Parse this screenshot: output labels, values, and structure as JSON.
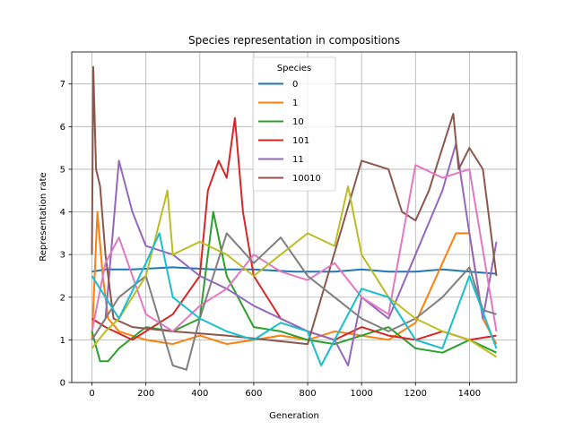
{
  "chart_data": {
    "type": "line",
    "title": "Species representation in compositions",
    "xlabel": "Generation",
    "ylabel": "Representation rate",
    "xlim": [
      -75,
      1575
    ],
    "ylim": [
      0,
      7.75
    ],
    "xticks": [
      0,
      200,
      400,
      600,
      800,
      1000,
      1200,
      1400
    ],
    "yticks": [
      0,
      1,
      2,
      3,
      4,
      5,
      6,
      7
    ],
    "grid": true,
    "legend": {
      "title": "Species",
      "placement": "upper-center"
    },
    "series": [
      {
        "name": "0",
        "color": "#1f77b4",
        "legend": true,
        "x": [
          0,
          50,
          150,
          300,
          450,
          600,
          750,
          900,
          1000,
          1100,
          1200,
          1300,
          1400,
          1500
        ],
        "y": [
          2.6,
          2.65,
          2.65,
          2.7,
          2.65,
          2.65,
          2.6,
          2.6,
          2.65,
          2.6,
          2.6,
          2.65,
          2.6,
          2.55
        ]
      },
      {
        "name": "1",
        "color": "#ff7f0e",
        "legend": true,
        "x": [
          0,
          20,
          40,
          60,
          100,
          200,
          300,
          400,
          500,
          600,
          700,
          800,
          900,
          1000,
          1100,
          1200,
          1300,
          1350,
          1400,
          1450,
          1500
        ],
        "y": [
          1.0,
          4.0,
          2.5,
          1.5,
          1.2,
          1.0,
          0.9,
          1.1,
          0.9,
          1.0,
          1.1,
          1.0,
          1.2,
          1.1,
          1.0,
          1.4,
          2.8,
          3.5,
          3.5,
          1.5,
          0.9
        ]
      },
      {
        "name": "10",
        "color": "#2ca02c",
        "legend": true,
        "x": [
          0,
          30,
          60,
          100,
          200,
          300,
          400,
          450,
          500,
          600,
          700,
          800,
          900,
          1000,
          1100,
          1200,
          1300,
          1400,
          1500
        ],
        "y": [
          1.2,
          0.5,
          0.5,
          0.8,
          1.3,
          1.2,
          1.5,
          4.0,
          2.5,
          1.3,
          1.2,
          1.0,
          0.9,
          1.1,
          1.3,
          0.8,
          0.7,
          1.0,
          0.7
        ]
      },
      {
        "name": "101",
        "color": "#d62728",
        "legend": true,
        "x": [
          0,
          50,
          150,
          300,
          400,
          430,
          470,
          500,
          530,
          560,
          600,
          700,
          800,
          900,
          1000,
          1100,
          1200,
          1300,
          1400,
          1500
        ],
        "y": [
          1.5,
          1.3,
          1.0,
          1.6,
          2.5,
          4.5,
          5.2,
          4.8,
          6.2,
          4.0,
          2.5,
          1.5,
          1.2,
          1.0,
          1.3,
          1.1,
          1.0,
          1.2,
          1.0,
          1.1
        ]
      },
      {
        "name": "11",
        "color": "#9467bd",
        "legend": true,
        "x": [
          0,
          50,
          100,
          150,
          200,
          300,
          400,
          500,
          600,
          700,
          800,
          900,
          950,
          1000,
          1100,
          1200,
          1300,
          1350,
          1400,
          1450,
          1500
        ],
        "y": [
          1.0,
          1.5,
          5.2,
          4.0,
          3.2,
          3.0,
          2.5,
          2.2,
          1.8,
          1.5,
          1.2,
          1.0,
          0.4,
          2.0,
          1.5,
          3.0,
          4.5,
          5.6,
          3.5,
          1.5,
          3.3
        ]
      },
      {
        "name": "10010",
        "color": "#8c564b",
        "legend": true,
        "x": [
          0,
          5,
          15,
          30,
          50,
          80,
          150,
          300,
          500,
          650,
          800,
          1000,
          1100,
          1150,
          1200,
          1250,
          1300,
          1340,
          1360,
          1400,
          1450,
          1500
        ],
        "y": [
          3.0,
          7.4,
          5.0,
          4.6,
          3.0,
          1.5,
          1.3,
          1.2,
          1.1,
          1.0,
          0.9,
          5.2,
          5.0,
          4.0,
          3.8,
          4.5,
          5.5,
          6.3,
          5.0,
          5.5,
          5.0,
          2.5
        ]
      },
      {
        "name": "",
        "color": "#e377c2",
        "legend": false,
        "x": [
          0,
          50,
          100,
          200,
          300,
          400,
          500,
          600,
          700,
          800,
          900,
          1000,
          1100,
          1200,
          1300,
          1400,
          1500
        ],
        "y": [
          1.2,
          2.8,
          3.4,
          1.6,
          1.2,
          1.8,
          2.2,
          3.0,
          2.6,
          2.4,
          2.8,
          2.0,
          1.6,
          5.1,
          4.8,
          5.0,
          1.2
        ]
      },
      {
        "name": "",
        "color": "#7f7f7f",
        "legend": false,
        "x": [
          0,
          50,
          100,
          200,
          300,
          350,
          400,
          500,
          600,
          700,
          800,
          900,
          1000,
          1100,
          1200,
          1300,
          1400,
          1450,
          1500
        ],
        "y": [
          1.0,
          1.5,
          2.0,
          2.5,
          0.4,
          0.3,
          1.5,
          3.5,
          2.8,
          3.4,
          2.5,
          2.0,
          1.5,
          1.2,
          1.5,
          2.0,
          2.7,
          1.7,
          1.6
        ]
      },
      {
        "name": "",
        "color": "#bcbd22",
        "legend": false,
        "x": [
          0,
          50,
          100,
          200,
          280,
          300,
          400,
          500,
          600,
          700,
          800,
          900,
          950,
          1000,
          1100,
          1200,
          1300,
          1400,
          1500
        ],
        "y": [
          0.8,
          1.2,
          1.5,
          2.5,
          4.5,
          3.0,
          3.3,
          3.0,
          2.5,
          3.0,
          3.5,
          3.2,
          4.6,
          3.0,
          2.0,
          1.5,
          1.2,
          1.0,
          0.6
        ]
      },
      {
        "name": "",
        "color": "#17becf",
        "legend": false,
        "x": [
          0,
          50,
          100,
          200,
          250,
          300,
          400,
          500,
          600,
          700,
          800,
          850,
          900,
          1000,
          1100,
          1200,
          1300,
          1400,
          1500
        ],
        "y": [
          2.5,
          2.0,
          1.5,
          2.8,
          3.5,
          2.0,
          1.5,
          1.2,
          1.0,
          1.4,
          1.2,
          0.4,
          1.0,
          2.2,
          2.0,
          1.0,
          0.8,
          2.5,
          0.8
        ]
      }
    ]
  }
}
